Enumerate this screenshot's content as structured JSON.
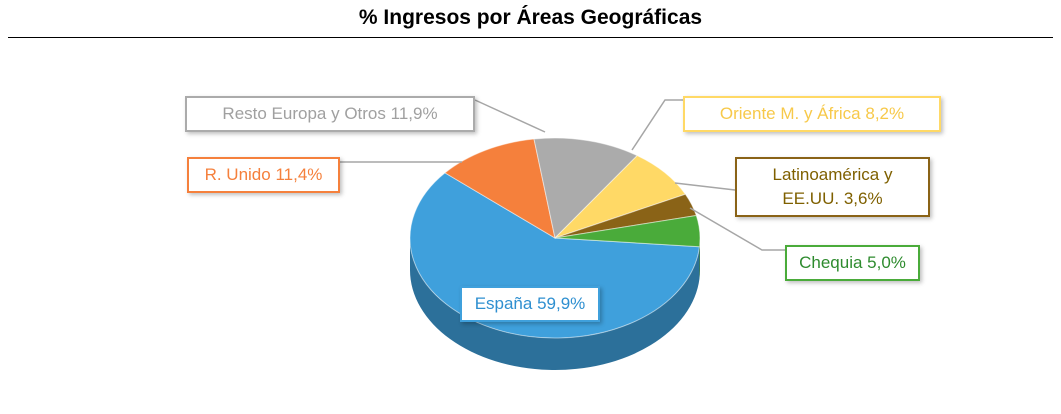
{
  "chart_data": {
    "type": "pie",
    "title": "% Ingresos por Áreas Geográficas",
    "categories": [
      "España",
      "R. Unido",
      "Resto Europa y Otros",
      "Oriente M. y África",
      "Latinoamérica y EE.UU.",
      "Chequia"
    ],
    "values": [
      59.9,
      11.4,
      11.9,
      8.2,
      3.6,
      5.0
    ],
    "value_labels": [
      "59,9%",
      "11,4%",
      "11,9%",
      "8,2%",
      "3,6%",
      "5,0%"
    ],
    "colors": [
      "#3fa0dc",
      "#f5803c",
      "#ababab",
      "#ffd966",
      "#8a6317",
      "#4aab3a"
    ]
  }
}
